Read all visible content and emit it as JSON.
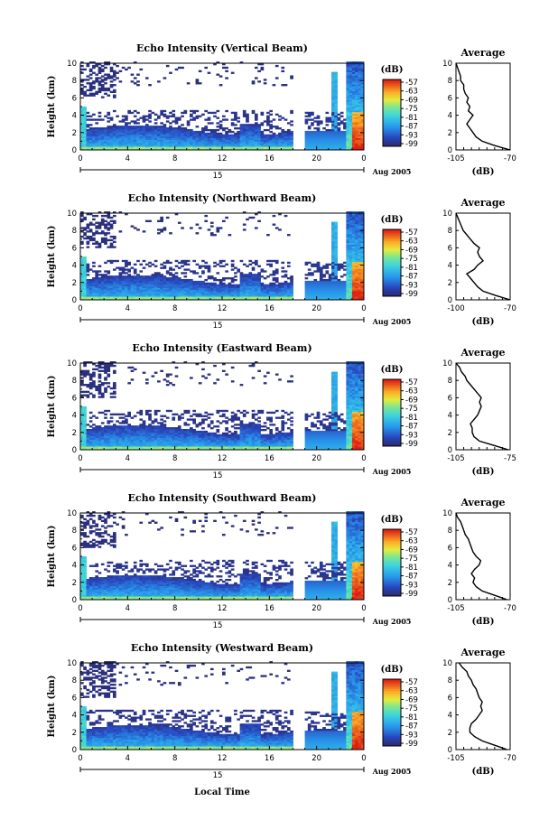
{
  "figure": {
    "xlabel": "Local Time",
    "ylabel": "Height (km)",
    "date_label": "Aug 2005",
    "day_label": "15",
    "colorbar_unit": "(dB)",
    "colorbar_ticks": [
      "-57",
      "-63",
      "-69",
      "-75",
      "-81",
      "-87",
      "-93",
      "-99"
    ]
  },
  "chart_data": [
    {
      "type": "heatmap",
      "title": "Echo Intensity (Vertical Beam)",
      "xlabel": "",
      "ylabel": "Height (km)",
      "x_ticks": [
        "0",
        "4",
        "8",
        "12",
        "16",
        "20",
        "0"
      ],
      "y_ticks": [
        "0",
        "2",
        "4",
        "6",
        "8",
        "10"
      ],
      "xlim": [
        0,
        24
      ],
      "ylim": [
        0,
        10
      ],
      "colorbar": {
        "unit": "(dB)",
        "range": [
          -99,
          -57
        ]
      },
      "profile": {
        "title": "Average",
        "xlabel": "(dB)",
        "xlim": [
          -105,
          -70
        ],
        "x_ticks": [
          "-105",
          "-70"
        ],
        "points": [
          [
            -70,
            0
          ],
          [
            -80,
            0.5
          ],
          [
            -88,
            1
          ],
          [
            -92,
            1.5
          ],
          [
            -94,
            2
          ],
          [
            -96,
            2.5
          ],
          [
            -98,
            3
          ],
          [
            -96,
            3.5
          ],
          [
            -94,
            4
          ],
          [
            -97,
            4.5
          ],
          [
            -96,
            5
          ],
          [
            -98,
            5.5
          ],
          [
            -97,
            6
          ],
          [
            -99,
            6.5
          ],
          [
            -100,
            7
          ],
          [
            -100,
            7.5
          ],
          [
            -102,
            8
          ],
          [
            -102,
            8.5
          ],
          [
            -103,
            9
          ],
          [
            -104,
            9.5
          ],
          [
            -105,
            10
          ]
        ]
      }
    },
    {
      "type": "heatmap",
      "title": "Echo Intensity (Northward Beam)",
      "xlabel": "",
      "ylabel": "Height (km)",
      "x_ticks": [
        "0",
        "4",
        "8",
        "12",
        "16",
        "20",
        "0"
      ],
      "y_ticks": [
        "0",
        "2",
        "4",
        "6",
        "8",
        "10"
      ],
      "xlim": [
        0,
        24
      ],
      "ylim": [
        0,
        10
      ],
      "colorbar": {
        "unit": "(dB)",
        "range": [
          -99,
          -57
        ]
      },
      "profile": {
        "title": "Average",
        "xlabel": "(dB)",
        "xlim": [
          -100,
          -70
        ],
        "x_ticks": [
          "-100",
          "-70"
        ],
        "points": [
          [
            -70,
            0
          ],
          [
            -78,
            0.5
          ],
          [
            -85,
            1
          ],
          [
            -88,
            1.5
          ],
          [
            -90,
            2
          ],
          [
            -92,
            2.5
          ],
          [
            -94,
            3
          ],
          [
            -90,
            3.5
          ],
          [
            -88,
            4
          ],
          [
            -85,
            4.5
          ],
          [
            -87,
            5
          ],
          [
            -88,
            5.5
          ],
          [
            -87,
            6
          ],
          [
            -90,
            6.5
          ],
          [
            -92,
            7
          ],
          [
            -94,
            7.5
          ],
          [
            -96,
            8
          ],
          [
            -97,
            8.5
          ],
          [
            -98,
            9
          ],
          [
            -99,
            9.5
          ],
          [
            -100,
            10
          ]
        ]
      }
    },
    {
      "type": "heatmap",
      "title": "Echo Intensity (Eastward Beam)",
      "xlabel": "",
      "ylabel": "Height (km)",
      "x_ticks": [
        "0",
        "4",
        "8",
        "12",
        "16",
        "20",
        "0"
      ],
      "y_ticks": [
        "0",
        "2",
        "4",
        "6",
        "8",
        "10"
      ],
      "xlim": [
        0,
        24
      ],
      "ylim": [
        0,
        10
      ],
      "colorbar": {
        "unit": "(dB)",
        "range": [
          -99,
          -57
        ]
      },
      "profile": {
        "title": "Average",
        "xlabel": "(dB)",
        "xlim": [
          -105,
          -75
        ],
        "x_ticks": [
          "-105",
          "-75"
        ],
        "points": [
          [
            -76,
            0
          ],
          [
            -84,
            0.5
          ],
          [
            -92,
            1
          ],
          [
            -95,
            1.5
          ],
          [
            -96,
            2
          ],
          [
            -96,
            2.5
          ],
          [
            -97,
            3
          ],
          [
            -95,
            3.5
          ],
          [
            -93,
            4
          ],
          [
            -92,
            4.5
          ],
          [
            -91,
            5
          ],
          [
            -92,
            5.5
          ],
          [
            -91,
            6
          ],
          [
            -93,
            6.5
          ],
          [
            -95,
            7
          ],
          [
            -97,
            7.5
          ],
          [
            -99,
            8
          ],
          [
            -100,
            8.5
          ],
          [
            -102,
            9
          ],
          [
            -103,
            9.5
          ],
          [
            -105,
            10
          ]
        ]
      }
    },
    {
      "type": "heatmap",
      "title": "Echo Intensity (Southward Beam)",
      "xlabel": "",
      "ylabel": "Height (km)",
      "x_ticks": [
        "0",
        "4",
        "8",
        "12",
        "16",
        "20",
        "0"
      ],
      "y_ticks": [
        "0",
        "2",
        "4",
        "6",
        "8",
        "10"
      ],
      "xlim": [
        0,
        24
      ],
      "ylim": [
        0,
        10
      ],
      "colorbar": {
        "unit": "(dB)",
        "range": [
          -99,
          -57
        ]
      },
      "profile": {
        "title": "Average",
        "xlabel": "(dB)",
        "xlim": [
          -105,
          -70
        ],
        "x_ticks": [
          "-105",
          "-70"
        ],
        "points": [
          [
            -72,
            0
          ],
          [
            -80,
            0.5
          ],
          [
            -88,
            1
          ],
          [
            -92,
            1.5
          ],
          [
            -94,
            2
          ],
          [
            -93,
            2.5
          ],
          [
            -95,
            3
          ],
          [
            -93,
            3.5
          ],
          [
            -90,
            4
          ],
          [
            -89,
            4.5
          ],
          [
            -92,
            5
          ],
          [
            -94,
            5.5
          ],
          [
            -95,
            6
          ],
          [
            -96,
            6.5
          ],
          [
            -97,
            7
          ],
          [
            -99,
            7.5
          ],
          [
            -100,
            8
          ],
          [
            -101,
            8.5
          ],
          [
            -102,
            9
          ],
          [
            -104,
            9.5
          ],
          [
            -105,
            10
          ]
        ]
      }
    },
    {
      "type": "heatmap",
      "title": "Echo Intensity (Westward Beam)",
      "xlabel": "Local Time",
      "ylabel": "Height (km)",
      "x_ticks": [
        "0",
        "4",
        "8",
        "12",
        "16",
        "20",
        "0"
      ],
      "y_ticks": [
        "0",
        "2",
        "4",
        "6",
        "8",
        "10"
      ],
      "xlim": [
        0,
        24
      ],
      "ylim": [
        0,
        10
      ],
      "colorbar": {
        "unit": "(dB)",
        "range": [
          -99,
          -57
        ]
      },
      "profile": {
        "title": "Average",
        "xlabel": "(dB)",
        "xlim": [
          -105,
          -70
        ],
        "x_ticks": [
          "-105",
          "-70"
        ],
        "points": [
          [
            -72,
            0
          ],
          [
            -80,
            0.5
          ],
          [
            -88,
            1
          ],
          [
            -93,
            1.5
          ],
          [
            -96,
            2
          ],
          [
            -96,
            2.5
          ],
          [
            -95,
            3
          ],
          [
            -92,
            3.5
          ],
          [
            -90,
            4
          ],
          [
            -88,
            4.5
          ],
          [
            -89,
            5
          ],
          [
            -88,
            5.5
          ],
          [
            -90,
            6
          ],
          [
            -91,
            6.5
          ],
          [
            -92,
            7
          ],
          [
            -94,
            7.5
          ],
          [
            -95,
            8
          ],
          [
            -97,
            8.5
          ],
          [
            -98,
            9
          ],
          [
            -101,
            9.5
          ],
          [
            -103,
            10
          ]
        ]
      }
    }
  ]
}
